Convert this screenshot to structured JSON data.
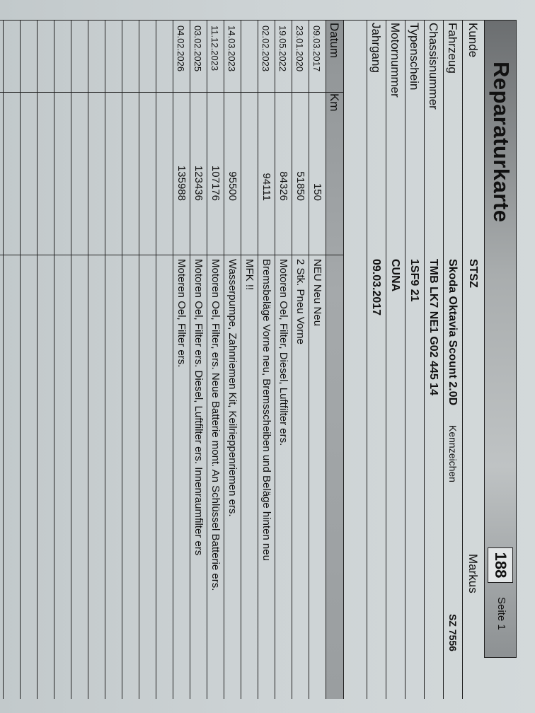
{
  "title": "Reparaturkarte",
  "card_number": "188",
  "page": "Seite 1",
  "fields": {
    "kunde": {
      "label": "Kunde",
      "value": "STSZ",
      "name": "Markus"
    },
    "fahrzeug": {
      "label": "Fahrzeug",
      "value": "Skoda Oktavia Scount 2.0D",
      "plate_label": "Kennzeichen",
      "plate": "SZ 7556"
    },
    "chassisnummer": {
      "label": "Chassisnummer",
      "value": "TMB LK7 NE1 G02 445 14"
    },
    "typenschein": {
      "label": "Typenschein",
      "value": "1SF9 21"
    },
    "motornummer": {
      "label": "Motornummer",
      "value": "CUNA"
    },
    "jahrgang": {
      "label": "Jahrgang",
      "value": "09.03.2017"
    }
  },
  "table": {
    "headers": {
      "datum": "Datum",
      "km": "Km"
    },
    "rows": [
      {
        "datum": "09.03.2017",
        "km": "150",
        "text": "NEU Neu Neu"
      },
      {
        "datum": "23.01.2020",
        "km": "51850",
        "text": "2 Stk. Pneu Vorne"
      },
      {
        "datum": "19.05.2022",
        "km": "84326",
        "text": "Motoren Oel, Filter, Diesel, Luftfilter ers."
      },
      {
        "datum": "02.02.2023",
        "km": "94111",
        "text": "Bremsbeläge Vorne neu, Bremsscheiben und Beläge hinten neu"
      },
      {
        "datum": "",
        "km": "",
        "text": "MFK !!"
      },
      {
        "datum": "14.03.2023",
        "km": "95500",
        "text": "Wasserpumpe, Zahnriemen Kit, Keilrieppenriemen ers."
      },
      {
        "datum": "11.12.2023",
        "km": "107176",
        "text": "Motoren Oel, Filter, ers. Neue Batterie mont. An Schlüssel Batterie ers."
      },
      {
        "datum": "03.02.2025",
        "km": "123436",
        "text": "Motoren Oel, Filter ers. Diesel, Luftfilter ers. Innenraumfilter ers"
      },
      {
        "datum": "04.02.2026",
        "km": "135988",
        "text": "Moteren Oel, Filter ers."
      }
    ]
  }
}
